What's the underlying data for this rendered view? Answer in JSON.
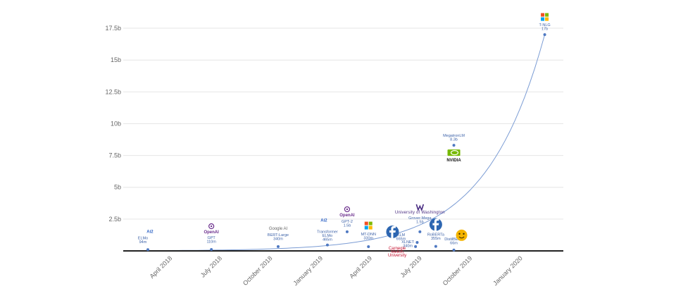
{
  "chart_data": {
    "type": "line",
    "title": "",
    "xlabel": "",
    "ylabel": "",
    "y_unit": "b",
    "ylim": [
      0,
      18.5
    ],
    "xlim": [
      "2018-01-01",
      "2020-03-15"
    ],
    "y_ticks": [
      {
        "value": 2.5,
        "label": "2.5b"
      },
      {
        "value": 5,
        "label": "5b"
      },
      {
        "value": 7.5,
        "label": "7.5b"
      },
      {
        "value": 10,
        "label": "10b"
      },
      {
        "value": 12.5,
        "label": "12.5b"
      },
      {
        "value": 15,
        "label": "15b"
      },
      {
        "value": 17.5,
        "label": "17.5b"
      }
    ],
    "x_ticks": [
      {
        "date": "2018-04-01",
        "label": "April 2018"
      },
      {
        "date": "2018-07-01",
        "label": "July 2018"
      },
      {
        "date": "2018-10-01",
        "label": "October 2018"
      },
      {
        "date": "2019-01-01",
        "label": "January 2019"
      },
      {
        "date": "2019-04-01",
        "label": "April 2019"
      },
      {
        "date": "2019-07-01",
        "label": "July 2019"
      },
      {
        "date": "2019-10-01",
        "label": "October 2019"
      },
      {
        "date": "2020-01-01",
        "label": "January 2020"
      }
    ],
    "grid": true,
    "series": [
      {
        "points": [
          {
            "date": "2018-02-15",
            "value": 0.094,
            "name": "ELMo",
            "size": "94m",
            "org": "Ai2",
            "logo": "ai2-logo",
            "label_side": "below",
            "name_align": "start"
          },
          {
            "date": "2018-06-11",
            "value": 0.11,
            "name": "GPT",
            "size": "110m",
            "org": "OpenAI",
            "logo": "openai-logo",
            "label_side": "below",
            "name_align": "middle"
          },
          {
            "date": "2018-10-11",
            "value": 0.34,
            "name": "BERT-Large",
            "size": "340m",
            "org": "Google AI",
            "logo": "google-ai-logo",
            "label_side": "below",
            "name_align": "middle"
          },
          {
            "date": "2019-01-09",
            "value": 0.465,
            "name": "Transformer ELMo",
            "size": "465m",
            "org": "Ai2",
            "logo": "ai2-logo",
            "label_side": "below",
            "name_align": "middle"
          },
          {
            "date": "2019-02-14",
            "value": 1.5,
            "name": "GPT-2",
            "size": "1.5b",
            "org": "OpenAI",
            "logo": "openai-logo",
            "label_side": "below",
            "name_align": "middle"
          },
          {
            "date": "2019-03-25",
            "value": 0.33,
            "name": "MT-DNN",
            "size": "330m",
            "org": "Microsoft",
            "logo": "microsoft-logo",
            "label_side": "below",
            "name_align": "middle"
          },
          {
            "date": "2019-06-19",
            "value": 0.34,
            "name": "XLNET",
            "size": "340m",
            "org": "Carnegie Mellon University",
            "logo": "cmu-logo",
            "label_side": "below",
            "name_align": "middle"
          },
          {
            "date": "2019-06-22",
            "value": 0.665,
            "name": "XLM",
            "size": "665m",
            "org": "Facebook",
            "logo": "facebook-logo",
            "label_side": "right",
            "name_align": "start"
          },
          {
            "date": "2019-06-27",
            "value": 1.5,
            "name": "Grover-Mega",
            "size": "1.5b",
            "org": "University of Washington",
            "logo": "uw-logo",
            "label_side": "below",
            "name_align": "middle"
          },
          {
            "date": "2019-07-26",
            "value": 0.355,
            "name": "RoBERTa",
            "size": "355m",
            "org": "Facebook",
            "logo": "facebook-logo",
            "label_side": "below",
            "name_align": "middle"
          },
          {
            "date": "2019-08-28",
            "value": 0.066,
            "name": "DistilBERT",
            "size": "66m",
            "org": "Hugging Face",
            "logo": "huggingface-logo",
            "label_side": "right",
            "name_align": "start"
          },
          {
            "date": "2019-08-28",
            "value": 8.3,
            "name": "MegatronLM",
            "size": "8.3b",
            "org": "NVIDIA",
            "logo": "nvidia-logo",
            "label_side": "above",
            "name_align": "middle"
          },
          {
            "date": "2020-02-10",
            "value": 17.0,
            "name": "T-NLG",
            "size": "17b",
            "org": "Microsoft",
            "logo": "microsoft-logo",
            "label_side": "above",
            "name_align": "middle"
          }
        ]
      }
    ],
    "trend_curve": true,
    "colors": {
      "curve": "#7b9cd4",
      "point": "#4f79c2",
      "label": "#3c62a8",
      "grid": "#e6e6e6",
      "axis": "#222222",
      "tick": "#666666",
      "ai2": "#2f64c6",
      "openai": "#6a2d8c",
      "facebook": "#2d66b1",
      "nvidia": "#76b900",
      "cmu": "#c41230",
      "uw": "#4b2e83",
      "hf": "#f4b400"
    }
  }
}
